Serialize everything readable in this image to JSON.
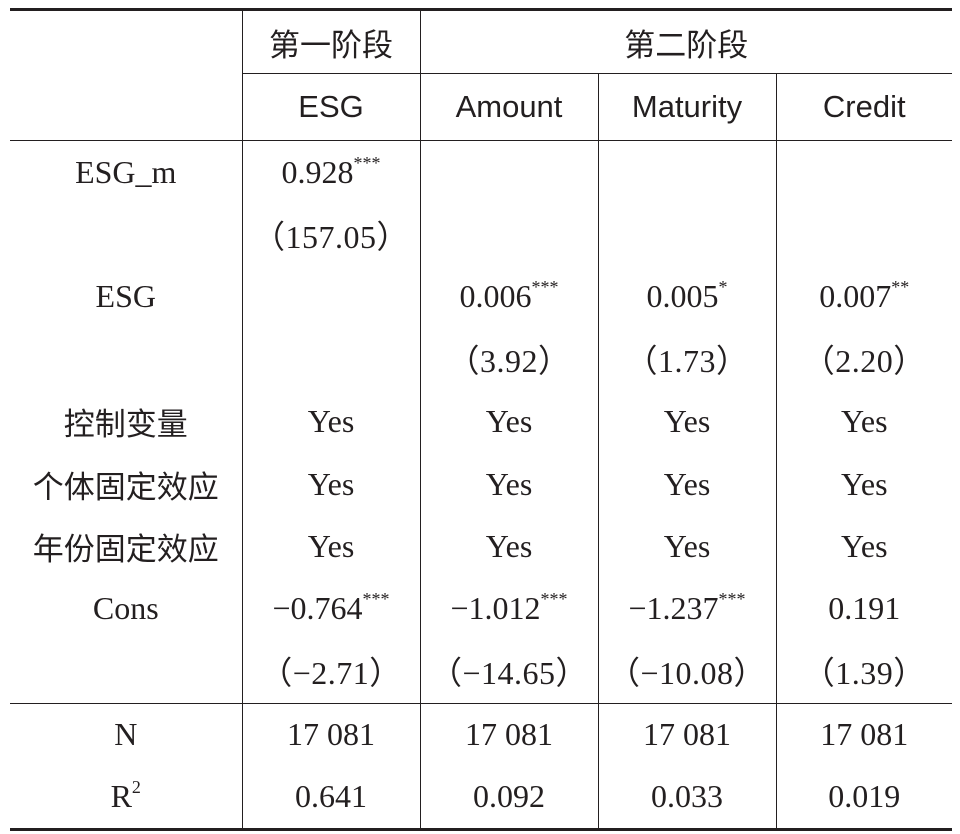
{
  "header": {
    "stage1": "第一阶段",
    "stage2": "第二阶段",
    "columns": [
      "ESG",
      "Amount",
      "Maturity",
      "Credit"
    ]
  },
  "rows": [
    {
      "label": "ESG_m",
      "cells": [
        {
          "v": "0.928",
          "s": "***"
        },
        {
          "v": "",
          "s": ""
        },
        {
          "v": "",
          "s": ""
        },
        {
          "v": "",
          "s": ""
        }
      ]
    },
    {
      "label": "",
      "cells": [
        {
          "v": "（157.05）",
          "s": ""
        },
        {
          "v": "",
          "s": ""
        },
        {
          "v": "",
          "s": ""
        },
        {
          "v": "",
          "s": ""
        }
      ]
    },
    {
      "label": "ESG",
      "cells": [
        {
          "v": "",
          "s": ""
        },
        {
          "v": "0.006",
          "s": "***"
        },
        {
          "v": "0.005",
          "s": "*"
        },
        {
          "v": "0.007",
          "s": "**"
        }
      ]
    },
    {
      "label": "",
      "cells": [
        {
          "v": "",
          "s": ""
        },
        {
          "v": "（3.92）",
          "s": ""
        },
        {
          "v": "（1.73）",
          "s": ""
        },
        {
          "v": "（2.20）",
          "s": ""
        }
      ]
    },
    {
      "label": "控制变量",
      "cells": [
        {
          "v": "Yes",
          "s": ""
        },
        {
          "v": "Yes",
          "s": ""
        },
        {
          "v": "Yes",
          "s": ""
        },
        {
          "v": "Yes",
          "s": ""
        }
      ]
    },
    {
      "label": "个体固定效应",
      "cells": [
        {
          "v": "Yes",
          "s": ""
        },
        {
          "v": "Yes",
          "s": ""
        },
        {
          "v": "Yes",
          "s": ""
        },
        {
          "v": "Yes",
          "s": ""
        }
      ]
    },
    {
      "label": "年份固定效应",
      "cells": [
        {
          "v": "Yes",
          "s": ""
        },
        {
          "v": "Yes",
          "s": ""
        },
        {
          "v": "Yes",
          "s": ""
        },
        {
          "v": "Yes",
          "s": ""
        }
      ]
    },
    {
      "label": "Cons",
      "cells": [
        {
          "v": "−0.764",
          "s": "***"
        },
        {
          "v": "−1.012",
          "s": "***"
        },
        {
          "v": "−1.237",
          "s": "***"
        },
        {
          "v": "0.191",
          "s": ""
        }
      ]
    },
    {
      "label": "",
      "cells": [
        {
          "v": "（−2.71）",
          "s": ""
        },
        {
          "v": "（−14.65）",
          "s": ""
        },
        {
          "v": "（−10.08）",
          "s": ""
        },
        {
          "v": "（1.39）",
          "s": ""
        }
      ]
    }
  ],
  "footer": [
    {
      "label": "N",
      "sup": "",
      "cells": [
        "17 081",
        "17 081",
        "17 081",
        "17 081"
      ]
    },
    {
      "label": "R",
      "sup": "2",
      "cells": [
        "0.641",
        "0.092",
        "0.033",
        "0.019"
      ]
    }
  ]
}
